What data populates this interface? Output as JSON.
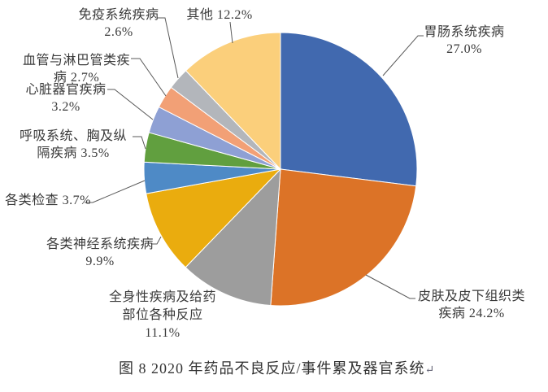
{
  "chart_data": {
    "type": "pie",
    "title": "图 8  2020 年药品不良反应/事件累及器官系统",
    "legend_position": "none",
    "start_angle_deg": 0,
    "direction": "clockwise",
    "label_style": "outside-callouts",
    "series": [
      {
        "key": "gastrointestinal",
        "label": "胃肠系统疾病",
        "value": 27.0,
        "pct_display": "27.0%",
        "color": "#4169AF"
      },
      {
        "key": "skin",
        "label": "皮肤及皮下组织类疾病",
        "value": 24.2,
        "pct_display": "24.2%",
        "color": "#DC7327"
      },
      {
        "key": "systemic",
        "label": "全身性疾病及给药部位各种反应",
        "value": 11.1,
        "pct_display": "11.1%",
        "color": "#9D9D9D"
      },
      {
        "key": "nervous",
        "label": "各类神经系统疾病",
        "value": 9.9,
        "pct_display": "9.9%",
        "color": "#EAAC0E"
      },
      {
        "key": "investigations",
        "label": "各类检查",
        "value": 3.7,
        "pct_display": "3.7%",
        "color": "#4E8AC6"
      },
      {
        "key": "respiratory",
        "label": "呼吸系统、胸及纵隔疾病",
        "value": 3.5,
        "pct_display": "3.5%",
        "color": "#619F3F"
      },
      {
        "key": "cardiac",
        "label": "心脏器官疾病",
        "value": 3.2,
        "pct_display": "3.2%",
        "color": "#8EA0D4"
      },
      {
        "key": "vascular",
        "label": "血管与淋巴管类疾病",
        "value": 2.7,
        "pct_display": "2.7%",
        "color": "#F2A076"
      },
      {
        "key": "immune",
        "label": "免疫系统疾病",
        "value": 2.6,
        "pct_display": "2.6%",
        "color": "#B3B6BB"
      },
      {
        "key": "other",
        "label": "其他",
        "value": 12.2,
        "pct_display": "12.2%",
        "color": "#FBCF7B"
      }
    ]
  },
  "callouts": {
    "gastrointestinal": {
      "lines": [
        "胃肠系统疾病",
        "27.0%"
      ]
    },
    "skin": {
      "lines": [
        "皮肤及皮下组织类",
        "疾病 24.2%"
      ]
    },
    "systemic": {
      "lines": [
        "全身性疾病及给药",
        "部位各种反应",
        "11.1%"
      ]
    },
    "nervous": {
      "lines": [
        "各类神经系统疾病",
        "9.9%"
      ]
    },
    "investigations": {
      "lines": [
        "各类检查 3.7%"
      ]
    },
    "respiratory": {
      "lines": [
        "呼吸系统、胸及纵",
        "隔疾病 3.5%"
      ]
    },
    "cardiac": {
      "lines": [
        "心脏器官疾病",
        "3.2%"
      ]
    },
    "vascular": {
      "lines": [
        "血管与淋巴管类疾",
        "病 2.7%"
      ]
    },
    "immune": {
      "lines": [
        "免疫系统疾病",
        "2.6%"
      ]
    },
    "other": {
      "lines": [
        "其他 12.2%"
      ]
    }
  },
  "caption": {
    "text": "图 8  2020 年药品不良反应/事件累及器官系统",
    "return_mark": "↵"
  },
  "style": {
    "leader_line_color": "#595959",
    "slice_border_color": "#ffffff",
    "text_color": "#3a3a3a"
  }
}
